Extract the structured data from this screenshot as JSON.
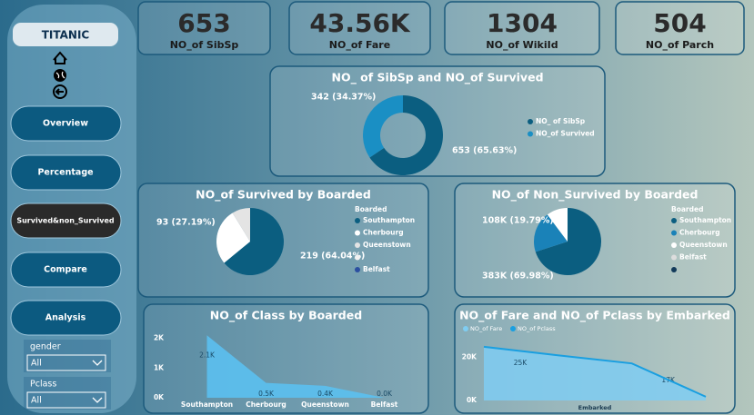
{
  "nav": {
    "title": "TITANIC",
    "buttons": [
      "Overview",
      "Percentage",
      "Survived&non_Survived",
      "Compare",
      "Analysis"
    ]
  },
  "slicers": [
    {
      "label": "gender",
      "value": "All"
    },
    {
      "label": "Pclass",
      "value": "All"
    }
  ],
  "kpis": [
    {
      "value": "653",
      "label": "NO_of SibSp"
    },
    {
      "value": "43.56K",
      "label": "NO_of Fare"
    },
    {
      "value": "1304",
      "label": "NO_of WikiId"
    },
    {
      "value": "504",
      "label": "NO_of Parch"
    }
  ],
  "chart_data": [
    {
      "type": "donut",
      "title": "NO_ of SibSp and NO_of Survived",
      "categories": [
        "NO_ of SibSp",
        "NO_of Survived"
      ],
      "values": [
        653,
        342
      ],
      "value_labels": [
        "653 (65.63%)",
        "342 (34.37%)"
      ],
      "colors": [
        "#0b5e80",
        "#1a8fc4"
      ]
    },
    {
      "type": "pie",
      "title": "NO_of Survived by Boarded",
      "legend_title": "Boarded",
      "categories": [
        "Southampton",
        "Cherbourg",
        "Queenstown",
        null,
        "Belfast"
      ],
      "values": [
        219,
        93,
        30,
        0,
        0
      ],
      "value_labels": [
        "219 (64.04%)",
        "93 (27.19%)",
        null,
        null,
        null
      ],
      "colors": [
        "#0b5e80",
        "#ffffff",
        "#e4e4e4",
        "#f2f2f2",
        "#2b4fa0"
      ]
    },
    {
      "type": "pie",
      "title": "NO_of Non_Survived by Boarded",
      "legend_title": "Boarded",
      "categories": [
        "Southampton",
        "Cherbourg",
        "Queenstown",
        "Belfast",
        null
      ],
      "values": [
        383000,
        108000,
        56000,
        0,
        0
      ],
      "value_labels": [
        "383K (69.98%)",
        "108K (19.79%)",
        null,
        null,
        null
      ],
      "colors": [
        "#0b5e80",
        "#1a82b8",
        "#ffffff",
        "#dddddd",
        "#123a5a"
      ]
    },
    {
      "type": "area",
      "title": "NO_of Class by Boarded",
      "categories": [
        "Southampton",
        "Cherbourg",
        "Queenstown",
        "Belfast"
      ],
      "values": [
        2100,
        500,
        400,
        0
      ],
      "value_labels": [
        "2.1K",
        "0.5K",
        "0.4K",
        "0.0K"
      ],
      "color": "#5bc0f0",
      "ylim": [
        0,
        2200
      ],
      "yticks": [
        {
          "value": 0,
          "label": "0K"
        },
        {
          "value": 1000,
          "label": "1K"
        },
        {
          "value": 2000,
          "label": "2K"
        }
      ]
    },
    {
      "type": "line",
      "title": "NO_of Fare and NO_of Pclass by Embarked",
      "x_label": "Embarked",
      "categories": [
        null,
        null,
        null,
        null
      ],
      "series": [
        {
          "name": "NO_of Fare",
          "color": "#7fcdf2",
          "values": [
            25000,
            21000,
            17000,
            2000
          ],
          "value_labels": [
            "25K",
            null,
            "17K",
            null
          ]
        },
        {
          "name": "NO_of Pclass",
          "color": "#1a9fe0",
          "axis": "y2",
          "values": [
            1000,
            840,
            690,
            70
          ]
        }
      ],
      "ylim": [
        0,
        30000
      ],
      "yticks": [
        {
          "value": 0,
          "label": "0K"
        },
        {
          "value": 20000,
          "label": "20K"
        }
      ],
      "y2lim": [
        0,
        1200
      ]
    }
  ]
}
